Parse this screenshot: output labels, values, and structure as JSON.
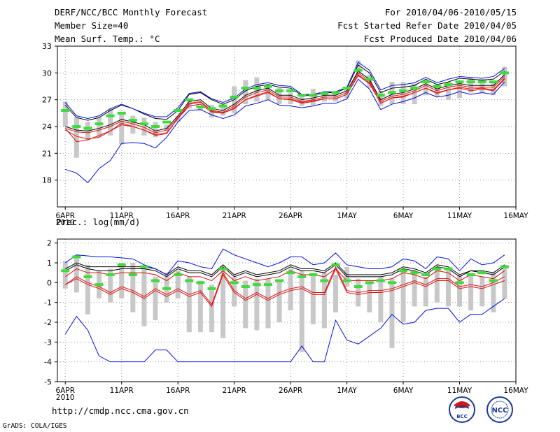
{
  "header": {
    "title": "DERF/NCC/BCC Monthly Forecast",
    "member": "Member Size=40",
    "variable": "Mean Surf. Temp.: °C",
    "period": "For 2010/04/06-2010/05/15",
    "started": "Fcst Started Refer Date 2010/04/05",
    "produced": "Fcst Produced Date 2010/04/06"
  },
  "footer": {
    "url": "http://cmdp.ncc.cma.gov.cn",
    "grads": "GrADS: COLA/IGES",
    "logo_left": "BCC",
    "logo_right": "NCC"
  },
  "colors": {
    "bar": "#c8c8c8",
    "median": "#3cdc3c",
    "mean": "#000000",
    "red": "#e01010",
    "blue": "#0010e0",
    "grid": "#999999"
  },
  "chart_data": [
    {
      "type": "line",
      "title": "Mean Surf. Temp.: °C",
      "x_ticks": [
        "6APR",
        "11APR",
        "16APR",
        "21APR",
        "26APR",
        "1MAY",
        "6MAY",
        "11MAY",
        "16MAY"
      ],
      "x_tick_days": [
        0,
        5,
        10,
        15,
        20,
        25,
        30,
        35,
        40
      ],
      "year_label": "2010",
      "yticks": [
        18,
        21,
        24,
        27,
        30,
        33
      ],
      "ylim": [
        15,
        33
      ],
      "xlim": [
        -0.7,
        40
      ],
      "days": [
        0,
        1,
        2,
        3,
        4,
        5,
        6,
        7,
        8,
        9,
        10,
        11,
        12,
        13,
        14,
        15,
        16,
        17,
        18,
        19,
        20,
        21,
        22,
        23,
        24,
        25,
        26,
        27,
        28,
        29,
        30,
        31,
        32,
        33,
        34,
        35,
        36,
        37,
        38,
        39
      ],
      "box_low": [
        24.0,
        20.5,
        22.5,
        22.8,
        23.0,
        22.0,
        23.2,
        23.0,
        22.8,
        23.5,
        24.5,
        26.0,
        25.8,
        25.0,
        25.2,
        25.5,
        26.5,
        26.8,
        27.0,
        26.5,
        26.5,
        26.3,
        26.4,
        26.8,
        26.8,
        27.2,
        29.8,
        28.3,
        26.3,
        26.5,
        26.5,
        26.5,
        27.5,
        27.3,
        27.0,
        27.2,
        27.8,
        27.8,
        27.5,
        28.5
      ],
      "box_high": [
        26.8,
        25.0,
        24.5,
        25.0,
        26.0,
        25.5,
        25.2,
        25.0,
        24.5,
        24.2,
        25.2,
        26.8,
        26.2,
        26.4,
        26.5,
        28.5,
        29.2,
        29.5,
        28.5,
        28.3,
        27.8,
        27.5,
        28.2,
        27.8,
        28.0,
        28.3,
        31.4,
        29.8,
        28.0,
        29.0,
        29.0,
        28.8,
        28.8,
        28.5,
        29.0,
        29.0,
        29.5,
        29.3,
        29.0,
        30.7
      ],
      "series": [
        {
          "name": "median",
          "values": [
            25.8,
            24.0,
            23.8,
            24.3,
            25.2,
            25.5,
            24.7,
            24.3,
            24.0,
            24.5,
            25.8,
            27.0,
            26.2,
            26.0,
            26.3,
            27.3,
            28.3,
            28.3,
            28.5,
            28.0,
            28.0,
            27.5,
            27.5,
            27.7,
            27.8,
            28.3,
            30.3,
            29.3,
            27.5,
            27.8,
            28.0,
            28.3,
            29.0,
            28.5,
            28.7,
            29.0,
            29.0,
            29.0,
            29.0,
            30.0
          ]
        },
        {
          "name": "mean",
          "values": [
            24.0,
            23.6,
            23.5,
            23.8,
            24.2,
            24.8,
            24.5,
            24.2,
            23.5,
            23.8,
            25.2,
            26.8,
            27.0,
            26.0,
            25.8,
            26.5,
            27.5,
            28.0,
            28.3,
            27.5,
            27.5,
            27.0,
            27.2,
            27.5,
            27.5,
            28.0,
            30.2,
            29.3,
            27.0,
            27.6,
            27.8,
            28.2,
            28.8,
            28.2,
            28.6,
            28.8,
            28.6,
            28.6,
            28.6,
            29.8
          ]
        },
        {
          "name": "upper",
          "values": [
            26.4,
            25.0,
            24.7,
            25.0,
            25.8,
            26.4,
            26.0,
            25.4,
            24.9,
            24.8,
            25.8,
            27.6,
            27.8,
            27.0,
            26.5,
            27.0,
            28.0,
            28.5,
            28.7,
            28.4,
            28.3,
            27.5,
            27.5,
            27.8,
            27.8,
            28.3,
            30.9,
            30.0,
            27.8,
            28.3,
            28.4,
            28.6,
            29.3,
            28.7,
            29.0,
            29.4,
            29.3,
            29.2,
            29.3,
            30.2
          ]
        },
        {
          "name": "red",
          "values": [
            23.8,
            23.4,
            23.3,
            23.6,
            24.0,
            24.6,
            24.3,
            23.9,
            23.3,
            23.6,
            25.0,
            26.6,
            26.8,
            25.8,
            25.6,
            26.3,
            27.3,
            27.8,
            28.1,
            27.3,
            27.3,
            26.8,
            27.0,
            27.3,
            27.3,
            27.8,
            30.0,
            29.1,
            26.8,
            27.4,
            27.6,
            28.0,
            28.6,
            28.0,
            28.4,
            28.6,
            28.4,
            28.4,
            28.4,
            29.6
          ]
        },
        {
          "name": "red2",
          "values": [
            23.6,
            22.9,
            22.6,
            22.8,
            23.5,
            24.4,
            24.0,
            23.6,
            23.1,
            23.3,
            24.9,
            26.5,
            26.7,
            25.7,
            25.5,
            26.1,
            27.0,
            27.5,
            27.9,
            27.1,
            27.1,
            26.7,
            26.9,
            27.1,
            27.1,
            27.6,
            29.8,
            28.9,
            26.6,
            27.2,
            27.4,
            27.8,
            28.3,
            27.8,
            28.1,
            28.4,
            28.2,
            28.3,
            28.1,
            29.4
          ]
        },
        {
          "name": "lower",
          "values": [
            23.8,
            22.3,
            22.5,
            23.0,
            23.5,
            24.2,
            24.0,
            23.6,
            23.0,
            23.2,
            24.9,
            26.3,
            26.5,
            25.6,
            25.5,
            26.0,
            27.0,
            27.4,
            27.8,
            27.1,
            27.0,
            26.6,
            26.8,
            27.1,
            27.1,
            27.6,
            29.7,
            28.8,
            26.6,
            27.2,
            27.3,
            27.8,
            28.3,
            27.7,
            28.1,
            28.3,
            28.0,
            28.2,
            28.0,
            29.3
          ]
        },
        {
          "name": "max",
          "values": [
            26.7,
            25.2,
            24.9,
            25.2,
            26.0,
            26.5,
            26.0,
            25.5,
            25.1,
            25.1,
            26.1,
            27.7,
            27.9,
            27.1,
            26.7,
            27.2,
            28.2,
            28.7,
            28.9,
            28.6,
            28.5,
            27.6,
            27.6,
            27.9,
            27.9,
            28.4,
            31.2,
            30.3,
            28.1,
            28.6,
            28.7,
            28.9,
            29.5,
            28.9,
            29.3,
            29.6,
            29.5,
            29.4,
            29.6,
            30.5
          ]
        },
        {
          "name": "min",
          "values": [
            19.2,
            18.8,
            17.7,
            19.3,
            20.2,
            22.1,
            22.2,
            22.1,
            21.6,
            22.8,
            24.5,
            25.8,
            25.9,
            25.3,
            24.9,
            25.3,
            26.3,
            26.6,
            27.0,
            26.4,
            26.3,
            26.1,
            26.3,
            26.6,
            26.6,
            27.1,
            29.3,
            28.2,
            25.9,
            26.5,
            26.8,
            27.2,
            27.8,
            27.3,
            27.5,
            27.9,
            27.6,
            27.8,
            27.6,
            29.0
          ]
        }
      ]
    },
    {
      "type": "line",
      "title": "Prec.: log(mm/d)",
      "x_ticks": [
        "6APR",
        "11APR",
        "16APR",
        "21APR",
        "26APR",
        "1MAY",
        "6MAY",
        "11MAY",
        "16MAY"
      ],
      "x_tick_days": [
        0,
        5,
        10,
        15,
        20,
        25,
        30,
        35,
        40
      ],
      "year_label": "2010",
      "yticks": [
        -5,
        -4,
        -3,
        -2,
        -1,
        0,
        1,
        2
      ],
      "ylim": [
        -5,
        2.2
      ],
      "xlim": [
        -0.7,
        40
      ],
      "days": [
        0,
        1,
        2,
        3,
        4,
        5,
        6,
        7,
        8,
        9,
        10,
        11,
        12,
        13,
        14,
        15,
        16,
        17,
        18,
        19,
        20,
        21,
        22,
        23,
        24,
        25,
        26,
        27,
        28,
        29,
        30,
        31,
        32,
        33,
        34,
        35,
        36,
        37,
        38,
        39
      ],
      "box_low": [
        -0.3,
        -0.5,
        -1.6,
        -0.8,
        -1.0,
        -0.8,
        -1.5,
        -2.2,
        -1.9,
        -1.0,
        -0.8,
        -2.5,
        -2.5,
        -2.5,
        -2.8,
        -1.2,
        -2.3,
        -2.4,
        -2.3,
        -2.0,
        -1.4,
        -3.5,
        -2.1,
        -2.3,
        -1.5,
        -0.2,
        -1.2,
        -1.5,
        -2.0,
        -3.3,
        -2.0,
        -1.2,
        -1.2,
        -1.0,
        -1.2,
        -1.2,
        -1.4,
        -1.2,
        -1.5,
        -0.8
      ],
      "box_high": [
        1.1,
        1.4,
        0.9,
        0.6,
        0.7,
        1.0,
        1.0,
        0.9,
        0.3,
        0.5,
        0.6,
        0.3,
        0.1,
        -0.1,
        0.8,
        0.3,
        0.1,
        0.2,
        0.2,
        0.1,
        0.7,
        0.6,
        0.5,
        0.5,
        0.4,
        0.8,
        0.2,
        0.0,
        0.3,
        0.2,
        0.7,
        0.6,
        0.3,
        0.8,
        0.7,
        0.4,
        0.5,
        0.3,
        0.5,
        0.9
      ],
      "series": [
        {
          "name": "median",
          "values": [
            0.6,
            1.3,
            0.3,
            -0.1,
            0.4,
            0.9,
            0.4,
            0.8,
            0.1,
            -0.3,
            0.4,
            0.1,
            0.0,
            -0.3,
            0.7,
            0.0,
            -0.2,
            -0.1,
            -0.1,
            0.1,
            0.5,
            0.3,
            0.4,
            0.1,
            0.9,
            0.1,
            -0.2,
            0.0,
            0.1,
            0.0,
            0.6,
            0.5,
            0.4,
            0.7,
            0.7,
            0.0,
            0.4,
            0.5,
            0.1,
            0.8
          ]
        },
        {
          "name": "mean",
          "values": [
            0.6,
            0.9,
            0.7,
            0.6,
            0.6,
            0.7,
            0.7,
            0.7,
            0.6,
            0.3,
            0.7,
            0.5,
            0.5,
            0.3,
            0.8,
            0.3,
            0.5,
            0.3,
            0.4,
            0.5,
            0.8,
            0.6,
            0.6,
            0.5,
            0.9,
            0.3,
            0.3,
            0.3,
            0.3,
            0.4,
            0.7,
            0.6,
            0.4,
            0.8,
            0.7,
            0.3,
            0.6,
            0.5,
            0.4,
            0.8
          ]
        },
        {
          "name": "upper",
          "values": [
            0.7,
            1.0,
            0.8,
            0.8,
            0.8,
            0.8,
            0.8,
            0.8,
            0.7,
            0.4,
            0.8,
            0.6,
            0.6,
            0.4,
            0.9,
            0.4,
            0.6,
            0.4,
            0.5,
            0.6,
            0.9,
            0.7,
            0.7,
            0.6,
            1.0,
            0.4,
            0.4,
            0.4,
            0.4,
            0.5,
            0.8,
            0.7,
            0.5,
            0.9,
            0.8,
            0.4,
            0.6,
            0.6,
            0.5,
            0.9
          ]
        },
        {
          "name": "red",
          "values": [
            -0.1,
            0.2,
            -0.1,
            -0.3,
            -0.6,
            -0.3,
            -0.5,
            -0.8,
            -0.4,
            -0.7,
            -0.4,
            -0.7,
            -0.5,
            -1.2,
            0.4,
            -0.5,
            -0.9,
            -0.6,
            -0.9,
            -0.6,
            -0.4,
            -0.3,
            -0.6,
            -0.6,
            0.7,
            -0.5,
            -0.6,
            -0.5,
            -0.5,
            -0.4,
            -0.2,
            0.0,
            -0.2,
            0.1,
            0.1,
            -0.3,
            -0.2,
            -0.3,
            -0.1,
            0.1
          ]
        },
        {
          "name": "red2",
          "values": [
            -0.1,
            0.3,
            0.0,
            -0.2,
            -0.5,
            -0.2,
            -0.4,
            -0.7,
            -0.3,
            -0.6,
            -0.3,
            -0.6,
            -0.4,
            -1.1,
            0.5,
            -0.4,
            -0.8,
            -0.5,
            -0.8,
            -0.5,
            -0.3,
            -0.2,
            -0.5,
            -0.5,
            0.8,
            -0.4,
            -0.5,
            -0.4,
            -0.4,
            -0.3,
            -0.1,
            0.1,
            -0.1,
            0.2,
            0.2,
            -0.2,
            -0.1,
            -0.2,
            0.0,
            0.3
          ]
        },
        {
          "name": "lower",
          "values": [
            0.3,
            0.7,
            0.5,
            0.5,
            0.4,
            0.5,
            0.5,
            0.5,
            0.4,
            0.1,
            0.5,
            0.3,
            0.3,
            0.1,
            0.6,
            0.1,
            0.3,
            0.1,
            0.2,
            0.3,
            0.6,
            0.4,
            0.4,
            0.3,
            0.7,
            0.1,
            0.1,
            0.1,
            0.1,
            0.2,
            0.5,
            0.4,
            0.2,
            0.6,
            0.5,
            0.1,
            0.4,
            0.3,
            0.2,
            0.6
          ]
        },
        {
          "name": "max",
          "values": [
            1.0,
            1.4,
            1.35,
            1.3,
            1.3,
            1.25,
            1.2,
            0.9,
            0.7,
            0.4,
            1.1,
            1.0,
            0.8,
            0.7,
            1.7,
            1.4,
            1.2,
            1.0,
            0.8,
            1.0,
            1.3,
            1.3,
            0.9,
            1.0,
            1.5,
            0.9,
            0.8,
            0.7,
            0.7,
            0.8,
            1.2,
            1.1,
            0.7,
            1.3,
            1.2,
            0.6,
            1.2,
            0.9,
            1.0,
            1.4
          ]
        },
        {
          "name": "min",
          "values": [
            -2.6,
            -1.7,
            -2.4,
            -3.7,
            -4.0,
            -4.0,
            -4.0,
            -4.0,
            -3.4,
            -3.4,
            -4.0,
            -4.0,
            -4.0,
            -4.0,
            -4.0,
            -4.0,
            -4.0,
            -4.0,
            -4.0,
            -4.0,
            -4.0,
            -3.2,
            -4.0,
            -4.0,
            -1.9,
            -2.9,
            -3.1,
            -2.7,
            -2.3,
            -1.6,
            -2.1,
            -2.0,
            -1.4,
            -1.3,
            -1.3,
            -2.0,
            -1.6,
            -1.6,
            -1.2,
            -0.8
          ]
        }
      ]
    }
  ]
}
